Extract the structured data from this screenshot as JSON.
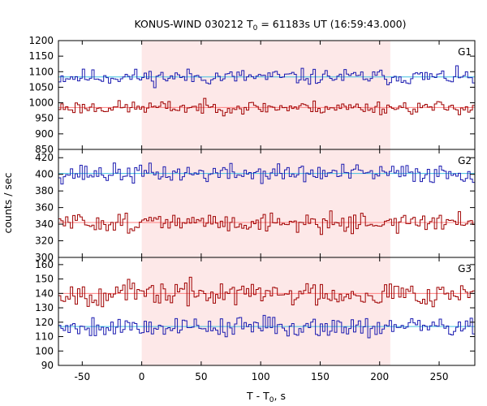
{
  "chart_data": {
    "type": "line",
    "title_main": "KONUS-WIND 030212 T",
    "title_sub": "0",
    "title_rest": " = 61183s UT (16:59:43.000)",
    "ylabel": "counts / sec",
    "xlabel_main": "T - T",
    "xlabel_sub": "0",
    "xlabel_rest": ", s",
    "xlim": [
      -70,
      280
    ],
    "xticks": [
      -50,
      0,
      50,
      100,
      150,
      200,
      250
    ],
    "shaded_interval": [
      0,
      209
    ],
    "colors": {
      "upper": "#1a1ab0",
      "lower": "#a00000",
      "upper_bg": "#40c0e0",
      "lower_bg": "#ff8080",
      "shade": "#fde8e8"
    },
    "panels": [
      {
        "label": "G1",
        "ylim": [
          850,
          1200
        ],
        "yticks": [
          850,
          900,
          950,
          1000,
          1050,
          1100,
          1150,
          1200
        ],
        "series": [
          {
            "key": "upper",
            "background": 1083,
            "amp": 18,
            "seed": 11
          },
          {
            "key": "lower",
            "background": 985,
            "amp": 15,
            "seed": 23
          }
        ]
      },
      {
        "label": "G2",
        "ylim": [
          300,
          430
        ],
        "yticks": [
          300,
          320,
          340,
          360,
          380,
          400,
          420
        ],
        "series": [
          {
            "key": "upper",
            "background": 401,
            "amp": 8,
            "seed": 37
          },
          {
            "key": "lower",
            "background": 342,
            "amp": 8,
            "seed": 51
          }
        ]
      },
      {
        "label": "G3",
        "ylim": [
          90,
          165
        ],
        "yticks": [
          90,
          100,
          110,
          120,
          130,
          140,
          150,
          160
        ],
        "series": [
          {
            "key": "lower",
            "background": 140,
            "amp": 6,
            "seed": 67
          },
          {
            "key": "upper",
            "background": 117,
            "amp": 5,
            "seed": 79
          }
        ]
      }
    ]
  }
}
